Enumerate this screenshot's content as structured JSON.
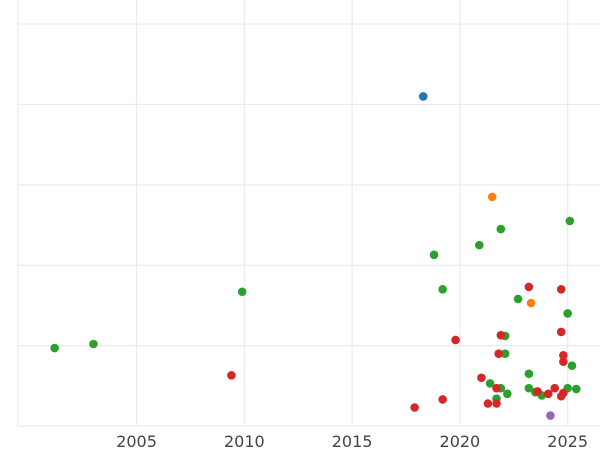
{
  "chart_data": {
    "type": "scatter",
    "title": "",
    "xlabel": "",
    "ylabel": "",
    "xlim": [
      1999.5,
      2026.5
    ],
    "ylim": [
      0,
      5.15
    ],
    "x_ticks": [
      2005,
      2010,
      2015,
      2020,
      2025
    ],
    "x_tick_labels": [
      "2005",
      "2010",
      "2015",
      "2020",
      "2025"
    ],
    "y_gridlines": [
      0,
      1,
      2,
      3,
      4,
      5
    ],
    "grid": true,
    "legend": "none",
    "colors": {
      "blue": "#1f77b4",
      "orange": "#ff7f0e",
      "green": "#2ca02c",
      "red": "#d62728",
      "purple": "#9467bd"
    },
    "series": [
      {
        "color": "#1f77b4",
        "points": [
          [
            2018.3,
            4.1
          ]
        ]
      },
      {
        "color": "#ff7f0e",
        "points": [
          [
            2021.5,
            2.85
          ],
          [
            2023.3,
            1.53
          ]
        ]
      },
      {
        "color": "#9467bd",
        "points": [
          [
            2024.2,
            0.13
          ]
        ]
      },
      {
        "color": "#2ca02c",
        "points": [
          [
            2001.2,
            0.97
          ],
          [
            2003.0,
            1.02
          ],
          [
            2009.9,
            1.67
          ],
          [
            2018.8,
            2.13
          ],
          [
            2019.2,
            1.7
          ],
          [
            2020.9,
            2.25
          ],
          [
            2021.9,
            2.45
          ],
          [
            2022.1,
            1.12
          ],
          [
            2022.7,
            1.58
          ],
          [
            2025.1,
            2.55
          ],
          [
            2025.0,
            1.4
          ],
          [
            2022.1,
            0.9
          ],
          [
            2023.2,
            0.65
          ],
          [
            2025.2,
            0.75
          ],
          [
            2021.4,
            0.53
          ],
          [
            2021.7,
            0.34
          ],
          [
            2021.9,
            0.47
          ],
          [
            2022.2,
            0.4
          ],
          [
            2023.2,
            0.47
          ],
          [
            2023.5,
            0.42
          ],
          [
            2023.8,
            0.38
          ],
          [
            2025.0,
            0.47
          ],
          [
            2025.4,
            0.46
          ]
        ]
      },
      {
        "color": "#d62728",
        "points": [
          [
            2009.4,
            0.63
          ],
          [
            2017.9,
            0.23
          ],
          [
            2019.2,
            0.33
          ],
          [
            2019.8,
            1.07
          ],
          [
            2021.0,
            0.6
          ],
          [
            2021.3,
            0.28
          ],
          [
            2021.7,
            0.47
          ],
          [
            2021.7,
            0.28
          ],
          [
            2021.8,
            0.9
          ],
          [
            2021.9,
            1.13
          ],
          [
            2023.2,
            1.73
          ],
          [
            2023.6,
            0.43
          ],
          [
            2024.1,
            0.4
          ],
          [
            2024.4,
            0.47
          ],
          [
            2024.7,
            1.7
          ],
          [
            2024.7,
            0.37
          ],
          [
            2024.8,
            0.41
          ],
          [
            2024.7,
            1.17
          ],
          [
            2024.8,
            0.88
          ],
          [
            2024.8,
            0.8
          ]
        ]
      }
    ]
  }
}
